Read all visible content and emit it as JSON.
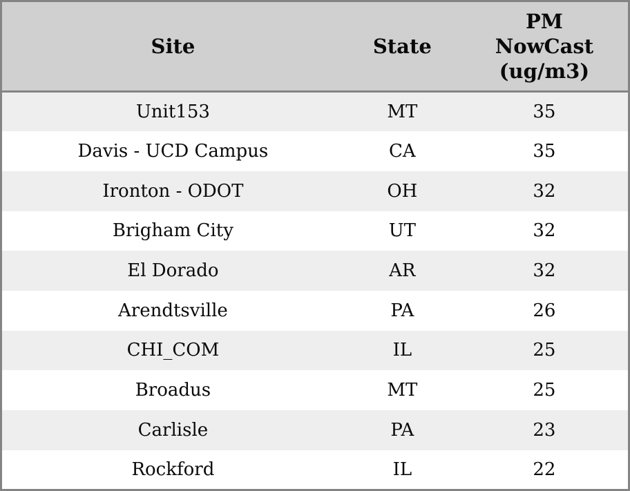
{
  "chart_data": {
    "type": "table",
    "title": "",
    "columns": [
      "Site",
      "State",
      "PM NowCast (ug/m3)"
    ],
    "rows": [
      [
        "Unit153",
        "MT",
        "35"
      ],
      [
        "Davis - UCD Campus",
        "CA",
        "35"
      ],
      [
        "Ironton - ODOT",
        "OH",
        "32"
      ],
      [
        "Brigham City",
        "UT",
        "32"
      ],
      [
        "El Dorado",
        "AR",
        "32"
      ],
      [
        "Arendtsville",
        "PA",
        "26"
      ],
      [
        "CHI_COM",
        "IL",
        "25"
      ],
      [
        "Broadus",
        "MT",
        "25"
      ],
      [
        "Carlisle",
        "PA",
        "23"
      ],
      [
        "Rockford",
        "IL",
        "22"
      ]
    ]
  },
  "table": {
    "header": {
      "site": "Site",
      "state": "State",
      "pm": "PM\nNowCast\n(ug/m3)"
    }
  },
  "colors": {
    "header_bg": "#d0d0d0",
    "row_odd_bg": "#eeeeee",
    "row_even_bg": "#ffffff",
    "border_color": "#848484",
    "text_color": "#0a0a0a"
  }
}
